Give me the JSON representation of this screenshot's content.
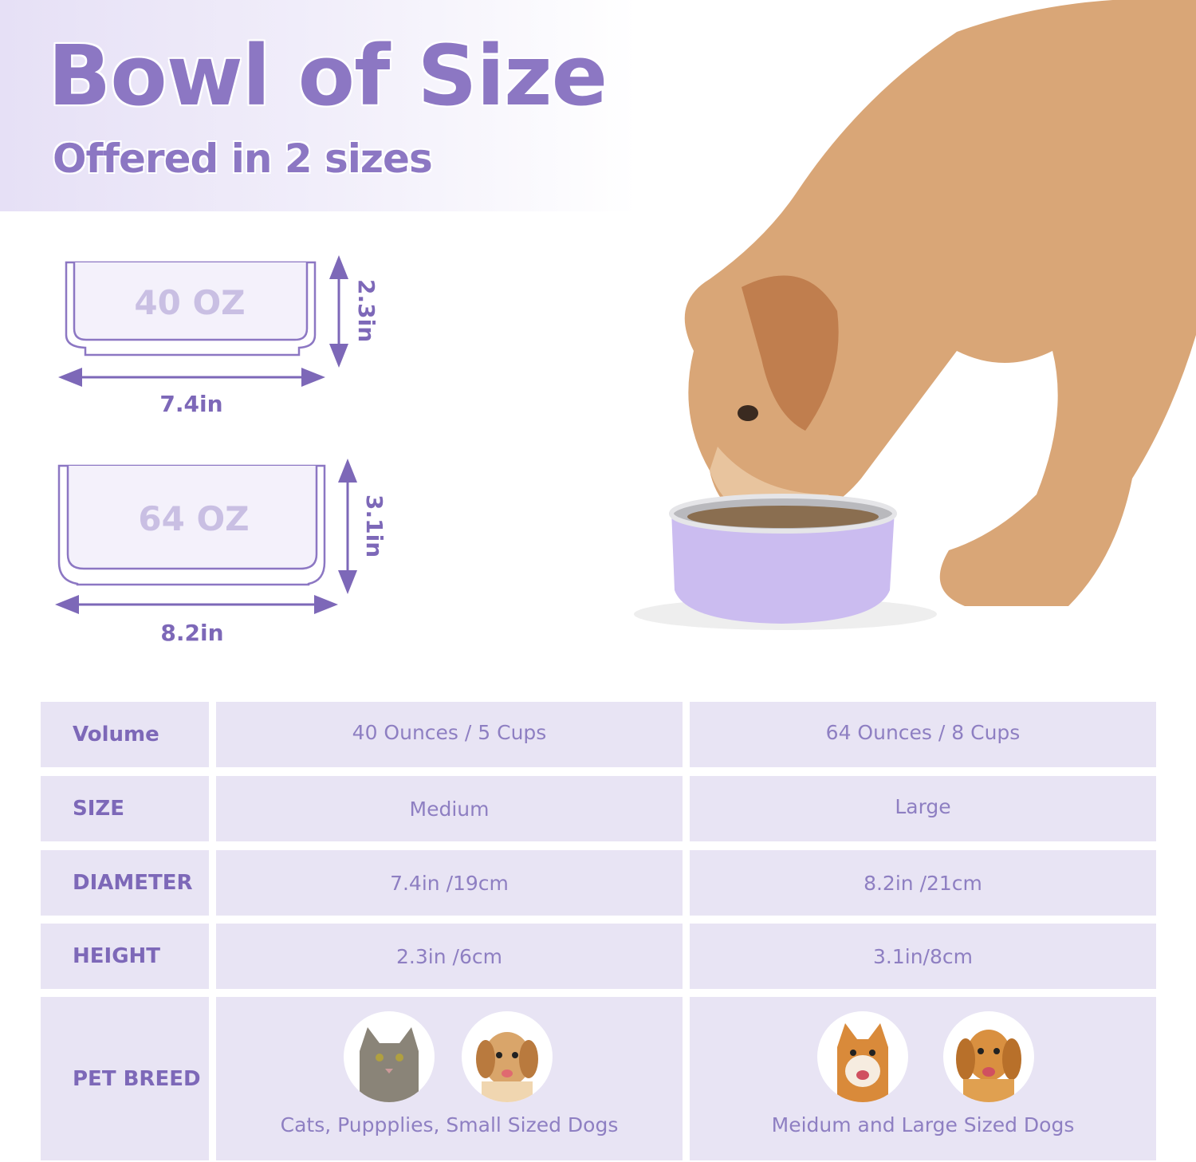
{
  "header": {
    "title": "Bowl of Size",
    "subtitle": "Offered in 2 sizes"
  },
  "diagram": {
    "small": {
      "capacity": "40 OZ",
      "width": "7.4in",
      "height": "2.3in"
    },
    "large": {
      "capacity": "64 OZ",
      "width": "8.2in",
      "height": "3.1in"
    }
  },
  "colors": {
    "accent": "#8c77c3",
    "table_bg": "#e8e4f4",
    "bowl": "#cbbcf0"
  },
  "table": {
    "rows": [
      {
        "label": "Volume",
        "medium": "40 Ounces / 5 Cups",
        "large": "64 Ounces / 8 Cups"
      },
      {
        "label": "SIZE",
        "medium": "Medium",
        "large": "Large"
      },
      {
        "label": "DIAMETER",
        "medium": "7.4in /19cm",
        "large": "8.2in /21cm"
      },
      {
        "label": "HEIGHT",
        "medium": "2.3in /6cm",
        "large": "3.1in/8cm"
      }
    ],
    "breed": {
      "label": "PET BREED",
      "medium": "Cats, Puppplies, Small Sized Dogs",
      "large": "Meidum and Large Sized Dogs",
      "medium_icons": [
        "cat-photo",
        "puppy-photo"
      ],
      "large_icons": [
        "shiba-photo",
        "golden-retriever-photo"
      ]
    }
  }
}
